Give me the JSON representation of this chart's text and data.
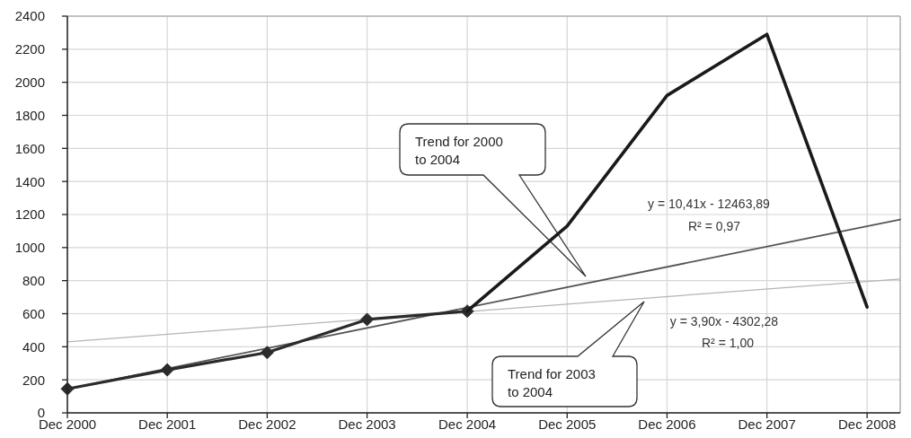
{
  "chart_data": {
    "type": "line",
    "xlim": [
      "2000-12",
      "2009-04"
    ],
    "ylim": [
      0,
      2400
    ],
    "xticks": [
      {
        "value": "2000-12",
        "label": "Dec 2000"
      },
      {
        "value": "2001-12",
        "label": "Dec 2001"
      },
      {
        "value": "2002-12",
        "label": "Dec 2002"
      },
      {
        "value": "2003-12",
        "label": "Dec 2003"
      },
      {
        "value": "2004-12",
        "label": "Dec 2004"
      },
      {
        "value": "2005-12",
        "label": "Dec 2005"
      },
      {
        "value": "2006-12",
        "label": "Dec 2006"
      },
      {
        "value": "2007-12",
        "label": "Dec 2007"
      },
      {
        "value": "2008-12",
        "label": "Dec 2008"
      }
    ],
    "yticks": [
      0,
      200,
      400,
      600,
      800,
      1000,
      1200,
      1400,
      1600,
      1800,
      2000,
      2200,
      2400
    ],
    "grid": true,
    "series": [
      {
        "color": "#1a1a1a",
        "marker": "none",
        "x": [
          "2004-12",
          "2005-12",
          "2006-12",
          "2007-12",
          "2008-12"
        ],
        "values": [
          615,
          1130,
          1920,
          2290,
          640
        ]
      },
      {
        "color": "#2b2b2b",
        "marker": "diamond",
        "x": [
          "2000-12",
          "2001-12",
          "2002-12",
          "2003-12",
          "2004-12"
        ],
        "values": [
          145,
          260,
          365,
          565,
          615
        ]
      },
      {
        "color": "#555555",
        "marker": "none",
        "x": [
          "2000-12",
          "2009-04"
        ],
        "values": [
          145,
          1170
        ]
      },
      {
        "color": "#b5b5b5",
        "marker": "none",
        "x": [
          "2000-12",
          "2009-04"
        ],
        "values": [
          430,
          810
        ]
      }
    ],
    "annotations": [
      "Trend for 2000 to 2004",
      "Trend for 2003 to 2004",
      "y = 10,41x - 12463,89",
      "R² = 0,97",
      "y = 3,90x - 4302,28",
      "R² = 1,00"
    ]
  }
}
